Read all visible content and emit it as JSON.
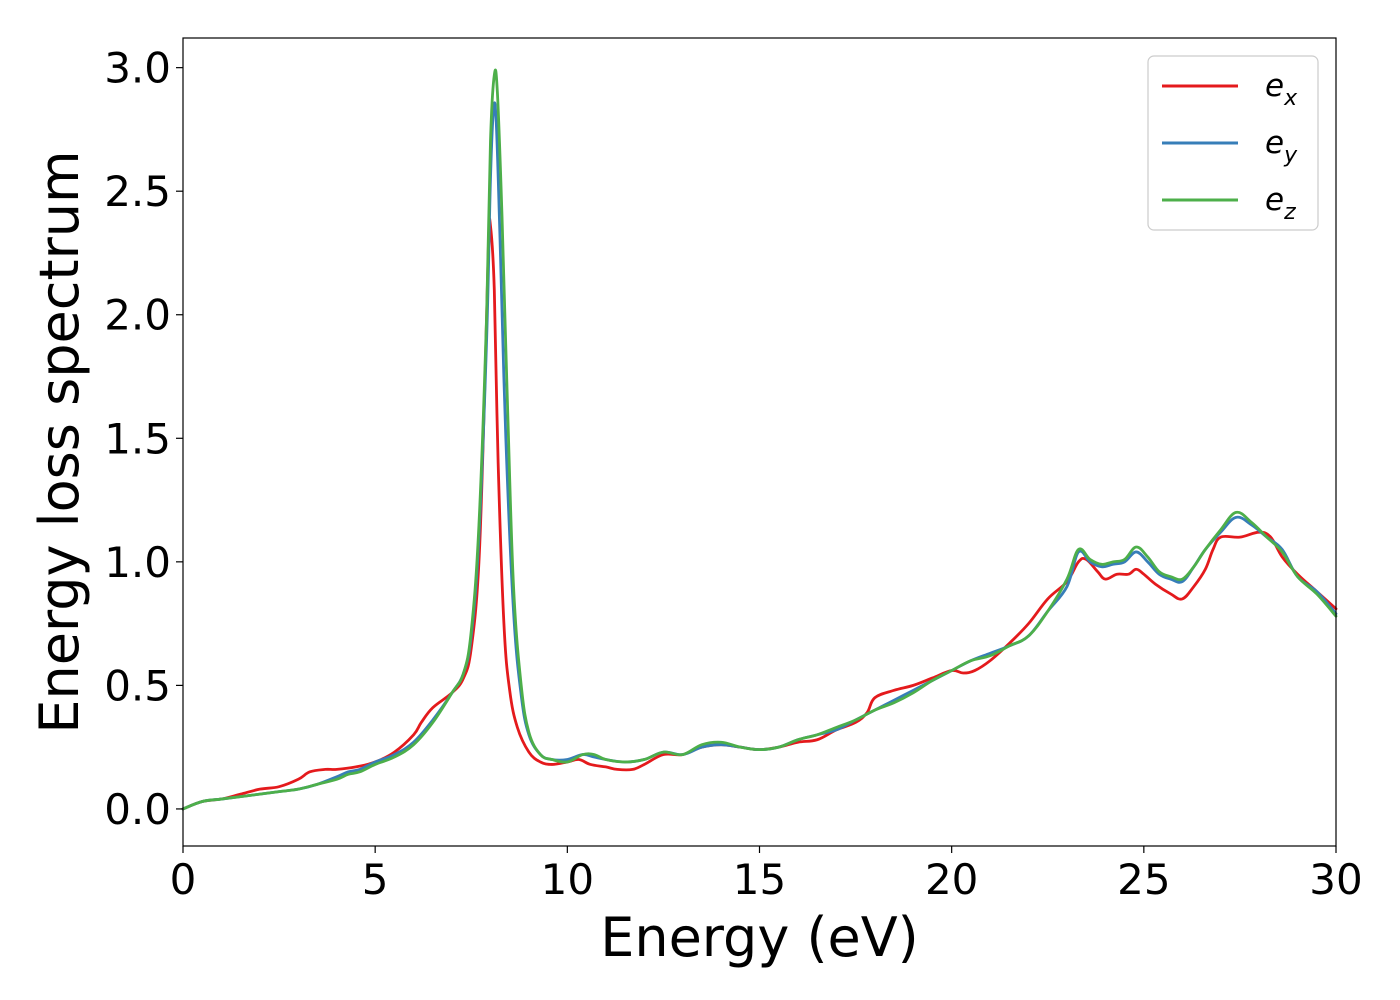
{
  "chart_data": {
    "type": "line",
    "title": "",
    "xlabel": "Energy (eV)",
    "ylabel": "Energy loss spectrum",
    "xlim": [
      0,
      30
    ],
    "ylim": [
      -0.15,
      3.12
    ],
    "xticks": [
      0,
      5,
      10,
      15,
      20,
      25,
      30
    ],
    "xtick_labels": [
      "0",
      "5",
      "10",
      "15",
      "20",
      "25",
      "30"
    ],
    "yticks": [
      0.0,
      0.5,
      1.0,
      1.5,
      2.0,
      2.5,
      3.0
    ],
    "ytick_labels": [
      "0.0",
      "0.5",
      "1.0",
      "1.5",
      "2.0",
      "2.5",
      "3.0"
    ],
    "grid": false,
    "legend_position": "top-right",
    "series": [
      {
        "name": "e",
        "subscript": "x",
        "color": "#e41a1c",
        "x": [
          0,
          0.5,
          1,
          1.5,
          2,
          2.5,
          3,
          3.3,
          3.7,
          4,
          4.5,
          5,
          5.5,
          6,
          6.2,
          6.5,
          7,
          7.3,
          7.5,
          7.7,
          7.85,
          7.95,
          8.0,
          8.1,
          8.2,
          8.35,
          8.5,
          8.7,
          9,
          9.3,
          9.6,
          10,
          10.3,
          10.6,
          11,
          11.3,
          11.7,
          12,
          12.5,
          13,
          13.5,
          14,
          14.5,
          15,
          15.5,
          16,
          16.5,
          17,
          17.5,
          17.8,
          18,
          18.5,
          19,
          19.5,
          20,
          20.3,
          20.6,
          21,
          21.5,
          22,
          22.5,
          23,
          23.3,
          23.5,
          23.8,
          24,
          24.3,
          24.6,
          24.8,
          25,
          25.3,
          25.7,
          26,
          26.3,
          26.6,
          26.8,
          27,
          27.5,
          28,
          28.3,
          28.6,
          29,
          29.5,
          30
        ],
        "y": [
          0.0,
          0.03,
          0.04,
          0.06,
          0.08,
          0.09,
          0.12,
          0.15,
          0.16,
          0.16,
          0.17,
          0.19,
          0.23,
          0.3,
          0.35,
          0.41,
          0.47,
          0.53,
          0.65,
          1.0,
          1.7,
          2.3,
          2.36,
          2.1,
          1.4,
          0.75,
          0.48,
          0.33,
          0.23,
          0.19,
          0.18,
          0.19,
          0.2,
          0.18,
          0.17,
          0.16,
          0.16,
          0.18,
          0.22,
          0.22,
          0.25,
          0.26,
          0.25,
          0.24,
          0.25,
          0.27,
          0.28,
          0.32,
          0.35,
          0.39,
          0.45,
          0.48,
          0.5,
          0.53,
          0.56,
          0.55,
          0.56,
          0.6,
          0.67,
          0.75,
          0.85,
          0.92,
          1.0,
          1.01,
          0.96,
          0.93,
          0.95,
          0.95,
          0.97,
          0.95,
          0.91,
          0.87,
          0.85,
          0.9,
          0.97,
          1.05,
          1.1,
          1.1,
          1.12,
          1.1,
          1.02,
          0.95,
          0.88,
          0.81
        ]
      },
      {
        "name": "e",
        "subscript": "y",
        "color": "#377eb8",
        "x": [
          0,
          0.5,
          1,
          1.5,
          2,
          2.5,
          3,
          3.5,
          4,
          4.3,
          4.6,
          5,
          5.5,
          6,
          6.5,
          7,
          7.3,
          7.5,
          7.7,
          7.9,
          8.0,
          8.08,
          8.15,
          8.25,
          8.4,
          8.6,
          8.8,
          9,
          9.3,
          9.6,
          10,
          10.4,
          10.7,
          11,
          11.5,
          12,
          12.5,
          13,
          13.5,
          14,
          14.5,
          15,
          15.5,
          16,
          16.5,
          17,
          17.5,
          18,
          18.5,
          19,
          19.5,
          20,
          20.5,
          21,
          21.5,
          22,
          22.5,
          23,
          23.3,
          23.6,
          23.9,
          24.2,
          24.5,
          24.8,
          25.1,
          25.4,
          25.7,
          26,
          26.3,
          26.6,
          27,
          27.4,
          27.8,
          28.2,
          28.6,
          29,
          29.5,
          30
        ],
        "y": [
          0.0,
          0.03,
          0.04,
          0.05,
          0.06,
          0.07,
          0.08,
          0.1,
          0.13,
          0.15,
          0.16,
          0.19,
          0.22,
          0.27,
          0.36,
          0.47,
          0.55,
          0.7,
          1.1,
          1.9,
          2.55,
          2.83,
          2.78,
          2.3,
          1.5,
          0.8,
          0.46,
          0.3,
          0.22,
          0.2,
          0.2,
          0.22,
          0.21,
          0.2,
          0.19,
          0.2,
          0.23,
          0.22,
          0.25,
          0.26,
          0.25,
          0.24,
          0.25,
          0.28,
          0.3,
          0.32,
          0.36,
          0.4,
          0.44,
          0.48,
          0.52,
          0.56,
          0.6,
          0.63,
          0.66,
          0.7,
          0.8,
          0.9,
          1.04,
          1.0,
          0.98,
          0.99,
          1.0,
          1.04,
          1.0,
          0.95,
          0.93,
          0.92,
          0.98,
          1.05,
          1.12,
          1.18,
          1.15,
          1.1,
          1.05,
          0.94,
          0.88,
          0.79
        ]
      },
      {
        "name": "e",
        "subscript": "z",
        "color": "#4daf4a",
        "x": [
          0,
          0.5,
          1,
          1.5,
          2,
          2.5,
          3,
          3.5,
          4,
          4.3,
          4.6,
          5,
          5.5,
          6,
          6.5,
          7,
          7.3,
          7.5,
          7.7,
          7.9,
          8.0,
          8.1,
          8.18,
          8.3,
          8.45,
          8.6,
          8.8,
          9,
          9.3,
          9.6,
          10,
          10.4,
          10.7,
          11,
          11.5,
          12,
          12.5,
          13,
          13.5,
          14,
          14.5,
          15,
          15.5,
          16,
          16.5,
          17,
          17.5,
          18,
          18.5,
          19,
          19.5,
          20,
          20.5,
          21,
          21.5,
          22,
          22.5,
          23,
          23.3,
          23.6,
          23.9,
          24.2,
          24.5,
          24.8,
          25.1,
          25.4,
          25.7,
          26,
          26.3,
          26.6,
          27,
          27.4,
          27.8,
          28.2,
          28.6,
          29,
          29.5,
          30
        ],
        "y": [
          0.0,
          0.03,
          0.04,
          0.05,
          0.06,
          0.07,
          0.08,
          0.1,
          0.12,
          0.14,
          0.15,
          0.18,
          0.21,
          0.26,
          0.35,
          0.47,
          0.55,
          0.72,
          1.15,
          2.0,
          2.7,
          2.97,
          2.9,
          2.4,
          1.6,
          0.9,
          0.5,
          0.31,
          0.22,
          0.2,
          0.19,
          0.22,
          0.22,
          0.2,
          0.19,
          0.2,
          0.23,
          0.22,
          0.26,
          0.27,
          0.25,
          0.24,
          0.25,
          0.28,
          0.3,
          0.33,
          0.36,
          0.4,
          0.43,
          0.47,
          0.52,
          0.56,
          0.6,
          0.62,
          0.66,
          0.7,
          0.8,
          0.93,
          1.05,
          1.01,
          0.99,
          1.0,
          1.01,
          1.06,
          1.02,
          0.96,
          0.94,
          0.93,
          0.98,
          1.05,
          1.13,
          1.2,
          1.16,
          1.1,
          1.04,
          0.94,
          0.87,
          0.78
        ]
      }
    ]
  }
}
